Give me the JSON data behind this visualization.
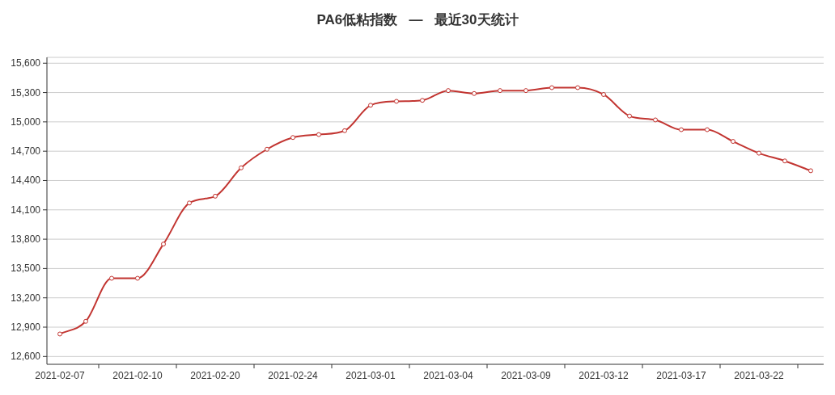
{
  "chart_data": {
    "type": "line",
    "title": "PA6低粘指数   —   最近30天统计",
    "categories": [
      "2021-02-07",
      null,
      null,
      "2021-02-10",
      null,
      null,
      "2021-02-20",
      null,
      null,
      "2021-02-24",
      null,
      null,
      "2021-03-01",
      null,
      null,
      "2021-03-04",
      null,
      null,
      "2021-03-09",
      null,
      null,
      "2021-03-12",
      null,
      null,
      "2021-03-17",
      null,
      null,
      "2021-03-22",
      null,
      null
    ],
    "series": [
      {
        "color": "#c23531",
        "values": [
          12830,
          12960,
          13400,
          13400,
          13750,
          14170,
          14240,
          14530,
          14720,
          14840,
          14870,
          14910,
          15170,
          15210,
          15220,
          15320,
          15290,
          15320,
          15320,
          15350,
          15350,
          15280,
          15060,
          15020,
          14920,
          14920,
          14800,
          14680,
          14600,
          14500
        ]
      }
    ],
    "ylim": [
      12520,
      15660
    ],
    "yticks": [
      {
        "value": 12600,
        "label": "12,600"
      },
      {
        "value": 12900,
        "label": "12,900"
      },
      {
        "value": 13200,
        "label": "13,200"
      },
      {
        "value": 13500,
        "label": "13,500"
      },
      {
        "value": 13800,
        "label": "13,800"
      },
      {
        "value": 14100,
        "label": "14,100"
      },
      {
        "value": 14400,
        "label": "14,400"
      },
      {
        "value": 14700,
        "label": "14,700"
      },
      {
        "value": 15000,
        "label": "15,000"
      },
      {
        "value": 15300,
        "label": "15,300"
      },
      {
        "value": 15600,
        "label": "15,600"
      }
    ],
    "grid": "y",
    "marker": "circle"
  }
}
